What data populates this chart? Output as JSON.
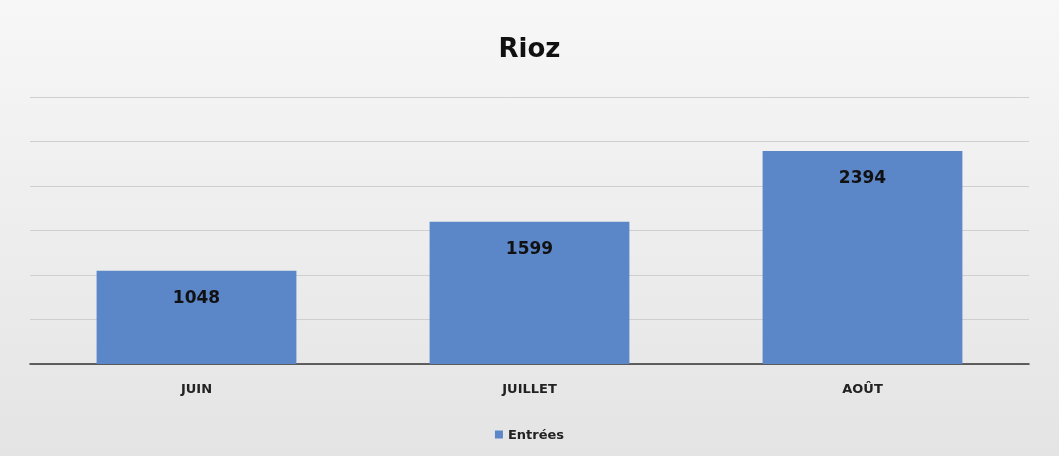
{
  "chart_data": {
    "type": "bar",
    "title": "Rioz",
    "categories": [
      "JUIN",
      "JUILLET",
      "AOÛT"
    ],
    "series": [
      {
        "name": "Entrées",
        "color": "#5b87c9",
        "values": [
          1048,
          1599,
          2394
        ]
      }
    ],
    "ylim": [
      0,
      3000
    ],
    "yticks": [
      {
        "value": 0,
        "label": null
      },
      {
        "value": 500,
        "label": null
      },
      {
        "value": 1000,
        "label": null
      },
      {
        "value": 1500,
        "label": null
      },
      {
        "value": 2000,
        "label": null
      },
      {
        "value": 2500,
        "label": null
      },
      {
        "value": 3000,
        "label": null
      }
    ],
    "tick_labels": "x",
    "grid": "y",
    "data_labels": true,
    "legend": "bottom"
  }
}
